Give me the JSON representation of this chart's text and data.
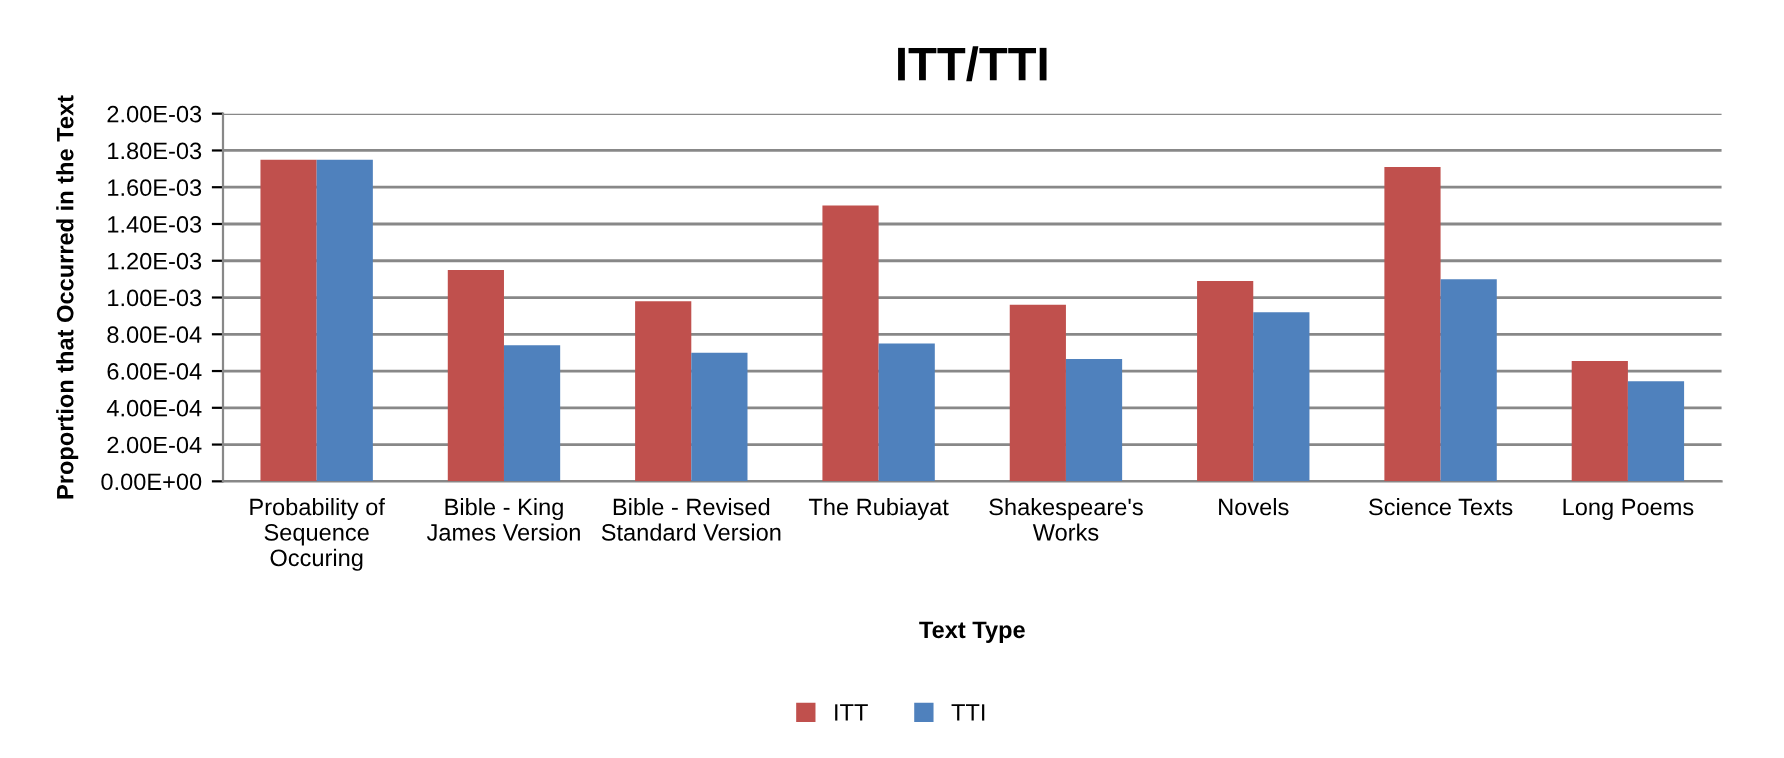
{
  "chart_data": {
    "type": "bar",
    "title": "ITT/TTI",
    "xlabel": "Text Type",
    "ylabel": "Proportion that Occurred in the Text",
    "categories": [
      "Probability of\nSequence\nOccuring",
      "Bible - King\nJames Version",
      "Bible - Revised\nStandard Version",
      "The Rubiayat",
      "Shakespeare's\nWorks",
      "Novels",
      "Science Texts",
      "Long Poems"
    ],
    "series": [
      {
        "name": "ITT",
        "color": "#c0504d",
        "values": [
          0.00175,
          0.00115,
          0.00098,
          0.0015,
          0.00096,
          0.00109,
          0.00171,
          0.000655
        ]
      },
      {
        "name": "TTI",
        "color": "#4f81bd",
        "values": [
          0.00175,
          0.00074,
          0.0007,
          0.00075,
          0.000665,
          0.00092,
          0.0011,
          0.000545
        ]
      }
    ],
    "ylim": [
      0,
      0.002
    ],
    "yticks": [
      {
        "value": 0,
        "label": "0.00E+00"
      },
      {
        "value": 0.0002,
        "label": "2.00E-04"
      },
      {
        "value": 0.0004,
        "label": "4.00E-04"
      },
      {
        "value": 0.0006,
        "label": "6.00E-04"
      },
      {
        "value": 0.0008,
        "label": "8.00E-04"
      },
      {
        "value": 0.001,
        "label": "1.00E-03"
      },
      {
        "value": 0.0012,
        "label": "1.20E-03"
      },
      {
        "value": 0.0014,
        "label": "1.40E-03"
      },
      {
        "value": 0.0016,
        "label": "1.60E-03"
      },
      {
        "value": 0.0018,
        "label": "1.80E-03"
      },
      {
        "value": 0.002,
        "label": "2.00E-03"
      }
    ],
    "grid": "y",
    "legend": "bottom"
  }
}
